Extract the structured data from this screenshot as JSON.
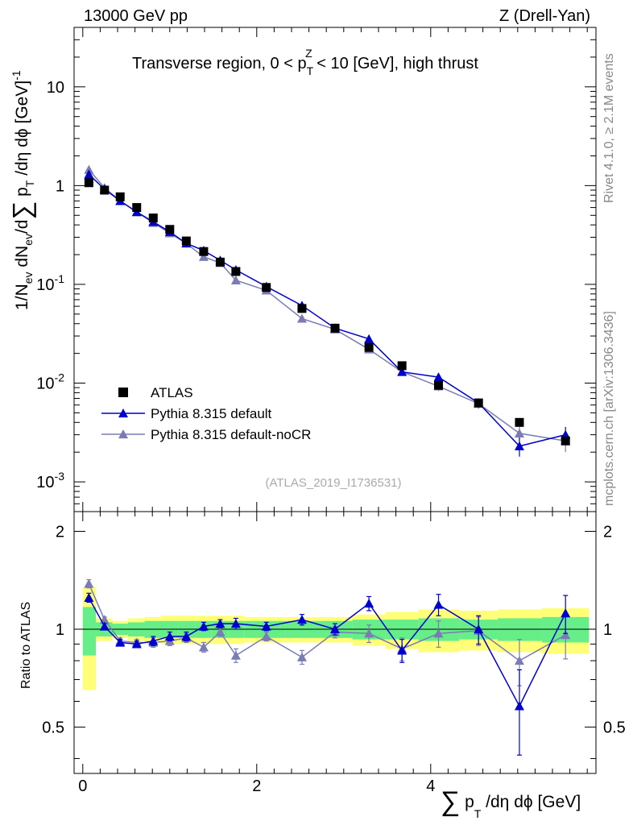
{
  "header": {
    "left": "13000 GeV pp",
    "right": "Z (Drell-Yan)",
    "title_main": "Transverse region, 0 < p",
    "title_sup": "Z",
    "title_sub": "T",
    "title_tail": " < 10 [GeV], high thrust"
  },
  "side": {
    "rivet": "Rivet 4.1.0, ≥ 2.1M events",
    "mcplots": "mcplots.cern.ch [arXiv:1306.3436]"
  },
  "watermark": "(ATLAS_2019_I1736531)",
  "axes": {
    "ylabel_main": "1/N",
    "ylabel_ev1": "ev",
    "ylabel_mid": " dN",
    "ylabel_ev2": "ev",
    "ylabel_d": "/d",
    "ylabel_sum": "∑",
    "ylabel_p": " p",
    "ylabel_T": "T",
    "ylabel_rest": " /dη dϕ  [GeV]",
    "ylabel_exp": "-1",
    "ratio_ylabel": "Ratio to ATLAS",
    "xlabel_sum": "∑",
    "xlabel_p": " p",
    "xlabel_T": "T",
    "xlabel_rest": " /dη dϕ [GeV]"
  },
  "legend": [
    {
      "label": "ATLAS",
      "color": "#000000",
      "marker": "square"
    },
    {
      "label": "Pythia 8.315 default",
      "color": "#0000cc",
      "marker": "triangle"
    },
    {
      "label": "Pythia 8.315 default-noCR",
      "color": "#7b7bb5",
      "marker": "triangle"
    }
  ],
  "colors": {
    "atlas": "#000000",
    "default": "#0000cc",
    "nocr": "#7b7bb5",
    "band_inner": "#66ee88",
    "band_outer": "#ffff77"
  },
  "chart_data": {
    "type": "line",
    "title": "Transverse region, 0 < p_T^Z < 10 [GeV], high thrust",
    "xlabel": "∑ p_T /dη dϕ [GeV]",
    "ylabel": "1/N_ev dN_ev/d∑ p_T /dη dϕ [GeV]^-1",
    "xlim": [
      -0.1,
      5.9
    ],
    "ylim": [
      0.0005,
      40
    ],
    "ratio_ylim": [
      0.36,
      2.3
    ],
    "yscale": "log",
    "xticks": [
      0,
      2,
      4
    ],
    "xtick_labels": [
      "0",
      "2",
      "4"
    ],
    "yticks": [
      0.001,
      0.01,
      0.1,
      1,
      10
    ],
    "ytick_labels": [
      {
        "base": "10",
        "exp": "-3"
      },
      {
        "base": "10",
        "exp": "-2"
      },
      {
        "base": "10",
        "exp": "-1"
      },
      {
        "base": "1",
        "exp": ""
      },
      {
        "base": "10",
        "exp": ""
      }
    ],
    "ratio_yticks": [
      0.5,
      1,
      2
    ],
    "ratio_ytick_labels": [
      "0.5",
      "1",
      "2"
    ],
    "x": [
      0.07,
      0.25,
      0.43,
      0.62,
      0.81,
      1.0,
      1.19,
      1.39,
      1.58,
      1.76,
      2.11,
      2.52,
      2.9,
      3.29,
      3.67,
      4.09,
      4.55,
      5.02,
      5.55
    ],
    "series": [
      {
        "name": "ATLAS",
        "values": [
          1.07,
          0.9,
          0.77,
          0.6,
          0.47,
          0.36,
          0.275,
          0.215,
          0.168,
          0.135,
          0.093,
          0.057,
          0.036,
          0.023,
          0.015,
          0.0095,
          0.0063,
          0.004,
          0.0026
        ]
      },
      {
        "name": "Pythia 8.315 default",
        "values": [
          1.3,
          0.92,
          0.7,
          0.54,
          0.43,
          0.34,
          0.26,
          0.22,
          0.175,
          0.14,
          0.095,
          0.061,
          0.036,
          0.028,
          0.013,
          0.0115,
          0.0063,
          0.0023,
          0.003
        ],
        "errors": [
          0.03,
          0.02,
          0.015,
          0.01,
          0.01,
          0.008,
          0.006,
          0.005,
          0.005,
          0.004,
          0.003,
          0.002,
          0.0015,
          0.0015,
          0.001,
          0.001,
          0.0007,
          0.0005,
          0.0006
        ]
      },
      {
        "name": "Pythia 8.315 default-noCR",
        "values": [
          1.45,
          0.95,
          0.7,
          0.54,
          0.42,
          0.33,
          0.26,
          0.19,
          0.165,
          0.11,
          0.087,
          0.045,
          0.035,
          0.022,
          0.013,
          0.0093,
          0.0062,
          0.0031,
          0.0026
        ],
        "errors": [
          0.03,
          0.02,
          0.015,
          0.01,
          0.01,
          0.008,
          0.006,
          0.005,
          0.005,
          0.004,
          0.003,
          0.002,
          0.0015,
          0.0015,
          0.001,
          0.001,
          0.0007,
          0.0005,
          0.0006
        ]
      }
    ],
    "ratio_default": [
      1.25,
      1.02,
      0.91,
      0.9,
      0.92,
      0.95,
      0.95,
      1.02,
      1.04,
      1.04,
      1.02,
      1.07,
      1.0,
      1.2,
      0.86,
      1.19,
      1.0,
      0.58,
      1.12
    ],
    "ratio_default_err": [
      0.04,
      0.02,
      0.02,
      0.02,
      0.03,
      0.03,
      0.03,
      0.03,
      0.03,
      0.04,
      0.03,
      0.04,
      0.04,
      0.06,
      0.07,
      0.09,
      0.1,
      0.17,
      0.15
    ],
    "ratio_nocr": [
      1.38,
      1.07,
      0.92,
      0.91,
      0.91,
      0.92,
      0.94,
      0.88,
      0.98,
      0.83,
      0.95,
      0.82,
      0.98,
      0.97,
      0.87,
      0.97,
      0.99,
      0.8,
      0.96
    ],
    "ratio_nocr_err": [
      0.04,
      0.02,
      0.02,
      0.02,
      0.03,
      0.03,
      0.03,
      0.03,
      0.03,
      0.04,
      0.03,
      0.04,
      0.04,
      0.06,
      0.07,
      0.09,
      0.1,
      0.13,
      0.15
    ],
    "band_edges": [
      0.0,
      0.15,
      0.34,
      0.52,
      0.71,
      0.9,
      1.1,
      1.29,
      1.48,
      1.67,
      1.86,
      2.33,
      2.71,
      3.1,
      3.48,
      3.86,
      4.33,
      4.77,
      5.28,
      5.82
    ],
    "band_inner": [
      0.17,
      0.05,
      0.04,
      0.05,
      0.06,
      0.06,
      0.06,
      0.06,
      0.06,
      0.06,
      0.06,
      0.06,
      0.06,
      0.07,
      0.07,
      0.08,
      0.07,
      0.08,
      0.09
    ],
    "band_outer": [
      0.35,
      0.08,
      0.06,
      0.08,
      0.09,
      0.1,
      0.1,
      0.1,
      0.1,
      0.1,
      0.09,
      0.09,
      0.09,
      0.11,
      0.13,
      0.15,
      0.14,
      0.15,
      0.16
    ]
  }
}
